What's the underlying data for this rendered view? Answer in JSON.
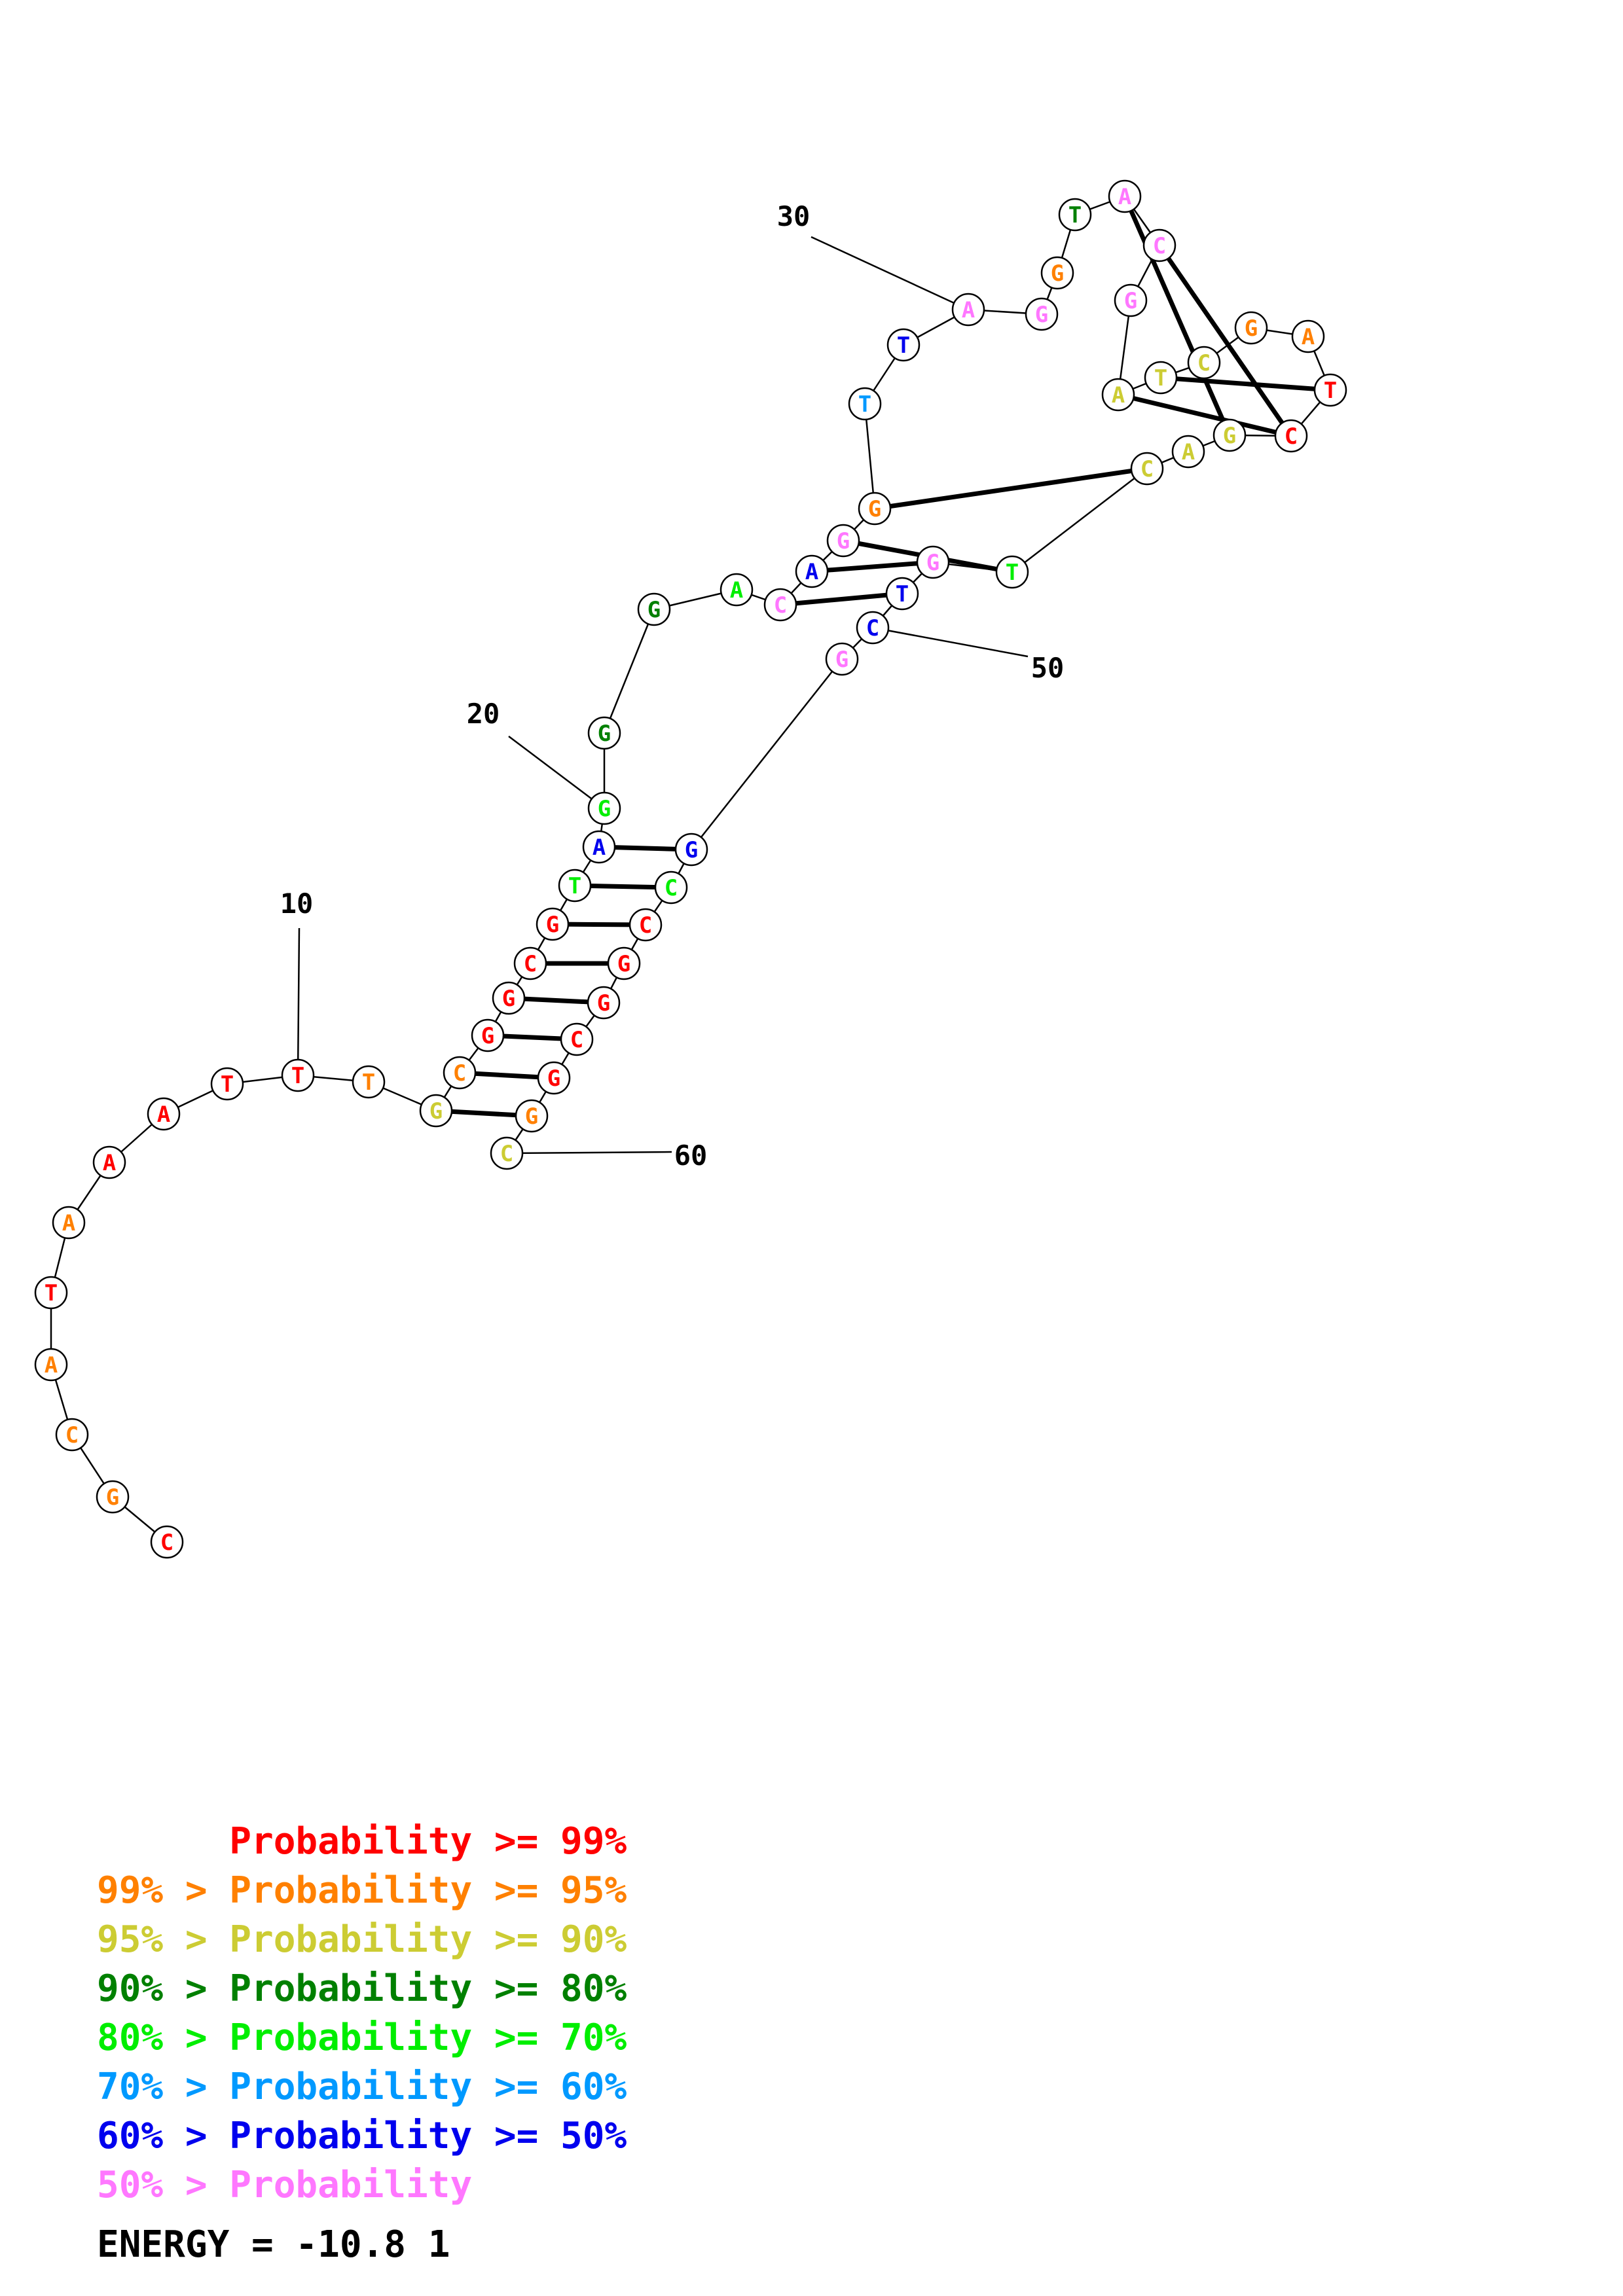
{
  "colors": {
    "p99": "#ff0000",
    "p95": "#ff8000",
    "p90": "#cccc33",
    "p80": "#008000",
    "p70": "#00ee00",
    "p60": "#0099ff",
    "p50": "#0000ee",
    "plow": "#ff77ff"
  },
  "sequence": [
    "C",
    "G",
    "C",
    "A",
    "T",
    "A",
    "A",
    "A",
    "T",
    "T",
    "T",
    "G",
    "C",
    "G",
    "G",
    "C",
    "G",
    "T",
    "A",
    "G",
    "G",
    "G",
    "A",
    "C",
    "A",
    "G",
    "G",
    "T",
    "T",
    "A",
    "G",
    "G",
    "T",
    "A",
    "C",
    "G",
    "A",
    "T",
    "C",
    "G",
    "A",
    "T",
    "C",
    "G",
    "A",
    "C",
    "T",
    "G",
    "T",
    "C",
    "G",
    "G",
    "C",
    "C",
    "G",
    "G",
    "C",
    "G",
    "G",
    "C"
  ],
  "prob_class": [
    "p99",
    "p95",
    "p95",
    "p95",
    "p99",
    "p95",
    "p99",
    "p99",
    "p99",
    "p99",
    "p95",
    "p90",
    "p95",
    "p99",
    "p99",
    "p99",
    "p99",
    "p70",
    "p50",
    "p70",
    "p80",
    "p80",
    "p70",
    "plow",
    "p50",
    "plow",
    "p95",
    "p60",
    "p50",
    "plow",
    "plow",
    "p95",
    "p80",
    "plow",
    "plow",
    "plow",
    "p90",
    "p90",
    "p90",
    "p95",
    "p95",
    "p99",
    "p99",
    "p90",
    "p90",
    "p90",
    "p70",
    "plow",
    "p50",
    "p50",
    "plow",
    "p50",
    "p70",
    "p99",
    "p99",
    "p99",
    "p99",
    "p99",
    "p95",
    "p90"
  ],
  "pairs": [
    [
      12,
      59
    ],
    [
      13,
      58
    ],
    [
      14,
      57
    ],
    [
      15,
      56
    ],
    [
      16,
      55
    ],
    [
      17,
      54
    ],
    [
      18,
      53
    ],
    [
      19,
      52
    ],
    [
      24,
      49
    ],
    [
      25,
      48
    ],
    [
      26,
      47
    ],
    [
      27,
      46
    ],
    [
      34,
      44
    ],
    [
      35,
      43
    ],
    [
      37,
      43
    ],
    [
      38,
      42
    ]
  ],
  "position_labels": [
    {
      "index": 10,
      "text": "10"
    },
    {
      "index": 20,
      "text": "20"
    },
    {
      "index": 30,
      "text": "30"
    },
    {
      "index": 50,
      "text": "50"
    },
    {
      "index": 60,
      "text": "60"
    }
  ],
  "legend": [
    {
      "prefix": "",
      "label": "Probability >= 99%",
      "color": "p99"
    },
    {
      "prefix": "99% > ",
      "label": "Probability >= 95%",
      "color": "p95"
    },
    {
      "prefix": "95% > ",
      "label": "Probability >= 90%",
      "color": "p90"
    },
    {
      "prefix": "90% > ",
      "label": "Probability >= 80%",
      "color": "p80"
    },
    {
      "prefix": "80% > ",
      "label": "Probability >= 70%",
      "color": "p70"
    },
    {
      "prefix": "70% > ",
      "label": "Probability >= 60%",
      "color": "p60"
    },
    {
      "prefix": "60% > ",
      "label": "Probability >= 50%",
      "color": "p50"
    },
    {
      "prefix": "50% > ",
      "label": "Probability",
      "color": "plow"
    }
  ],
  "energy_text": "ENERGY = -10.8  1"
}
